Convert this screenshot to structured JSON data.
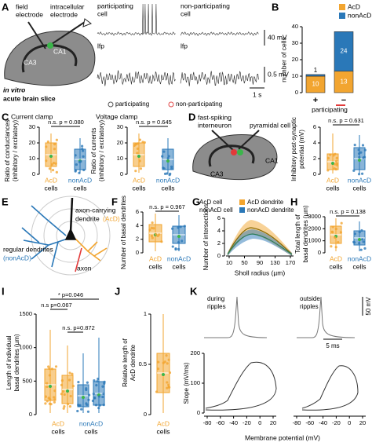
{
  "panels": {
    "A": {
      "letter": "A",
      "field_electrode": [
        "field",
        "electrode"
      ],
      "intracellular_electrode": [
        "intracellular",
        "electrode"
      ],
      "ca1": "CA1",
      "ca3": "CA3",
      "slice": [
        "in vitro",
        "acute brain slice"
      ],
      "participating_cell": [
        "participating",
        "cell"
      ],
      "nonparticipating_cell": [
        "non-participating",
        "cell"
      ],
      "lfp": [
        "lfp",
        "lfp"
      ],
      "vm_scale": "40 mV",
      "lfp_scale": "0.5 mV",
      "time_scale": "1 s",
      "legend": [
        "participating",
        "non-participating"
      ]
    },
    "B": {
      "type": "bar",
      "letter": "B",
      "ylabel": "number of cells",
      "ylim": [
        0,
        40
      ],
      "yticks": [
        0,
        10,
        20,
        30,
        40
      ],
      "categories": [
        "+",
        "−"
      ],
      "xlabel": "participating",
      "series": [
        {
          "name": "AcD",
          "color": "#f2a530",
          "values": [
            10,
            13
          ]
        },
        {
          "name": "nonAcD",
          "color": "#2a78b8",
          "values": [
            1,
            24
          ]
        }
      ]
    },
    "C": {
      "letter": "C",
      "plots": [
        {
          "title": "Current clamp",
          "ylabel": [
            "Ratio of conductances",
            "(inhibitory / excitatory)"
          ],
          "yticks": [
            0,
            10,
            20,
            30
          ],
          "stat": "n.s. p = 0.080"
        },
        {
          "title": "Voltage clamp",
          "ylabel": [
            "Ratio of currents",
            "(inhibitory / excitatory)"
          ],
          "yticks": [
            0,
            10,
            20,
            30
          ],
          "stat": "n.s. p = 0.645"
        }
      ],
      "groups": [
        [
          "AcD",
          "cells"
        ],
        [
          "nonAcD",
          "cells"
        ]
      ]
    },
    "D": {
      "letter": "D",
      "cells": [
        "fast-spiking",
        "interneuron",
        "pyramidal cell"
      ],
      "ca1": "CA1",
      "ca3": "CA3",
      "ylabel": [
        "Inhibitory post-synaptic",
        "potential (mV)"
      ],
      "yticks": [
        0,
        2,
        4,
        6
      ],
      "stat": "n.s. p = 0.631",
      "groups": [
        [
          "AcD",
          "cells"
        ],
        [
          "nonAcD",
          "cells"
        ]
      ]
    },
    "E": {
      "letter": "E",
      "acd_label": [
        "axon-carrying",
        "dendrite",
        "(AcD)"
      ],
      "nonacd_label": [
        "regular dendrites",
        "(nonAcD)"
      ],
      "axon": "axon"
    },
    "F": {
      "letter": "F",
      "ylabel": "Number of basal dendrites",
      "yticks": [
        0,
        2,
        4,
        6
      ],
      "stat": "n.s. p = 0.967",
      "groups": [
        [
          "AcD",
          "cells"
        ],
        [
          "nonAcD",
          "cells"
        ]
      ]
    },
    "G": {
      "letter": "G",
      "legend_cells": [
        "AcD cell",
        "nonAcD cell"
      ],
      "legend_dendrites": [
        "AcD dendrite",
        "nonAcD dendrite"
      ],
      "ylabel": "Number of intersections",
      "yticks": [
        0,
        2,
        4,
        6
      ],
      "xlabel": "Sholl radius (µm)",
      "xticks": [
        10,
        50,
        90,
        130,
        170
      ]
    },
    "H": {
      "letter": "H",
      "ylabel": [
        "Total length of",
        "basal dendrites (µm)"
      ],
      "yticks": [
        0,
        1000,
        2000,
        3000
      ],
      "stat": "n.s. p = 0.138",
      "groups": [
        [
          "AcD",
          "cells"
        ],
        [
          "nonAcD",
          "cells"
        ]
      ]
    },
    "I": {
      "letter": "I",
      "ylabel": [
        "Length of individual",
        "basal dendrites (µm)"
      ],
      "yticks": [
        0,
        500,
        1000,
        1500
      ],
      "stats": [
        "* p=0.046",
        "n.s p=0.067",
        "n.s. p=0.872"
      ],
      "groups": [
        [
          "AcD",
          "cells"
        ],
        [
          "nonAcD",
          "cells"
        ]
      ]
    },
    "J": {
      "letter": "J",
      "ylabel": [
        "Relative length of",
        "AcD dendrite"
      ],
      "yticks": [
        0,
        0.5,
        1
      ],
      "group": [
        "AcD",
        "cells"
      ]
    },
    "K": {
      "letter": "K",
      "conditions": [
        [
          "during",
          "ripples"
        ],
        [
          "outside",
          "ripples"
        ]
      ],
      "vm_scale": "50 mV",
      "time_scale": "5 ms",
      "ylabel": "Slope (mV/ms)",
      "yticks": [
        0,
        100,
        200
      ],
      "xlabel": "Membrane potential (mV)",
      "xticks": [
        [
          -80,
          -60,
          -40,
          -20,
          0,
          20
        ],
        [
          -80,
          -60,
          -40,
          -20,
          0,
          20
        ]
      ]
    }
  }
}
